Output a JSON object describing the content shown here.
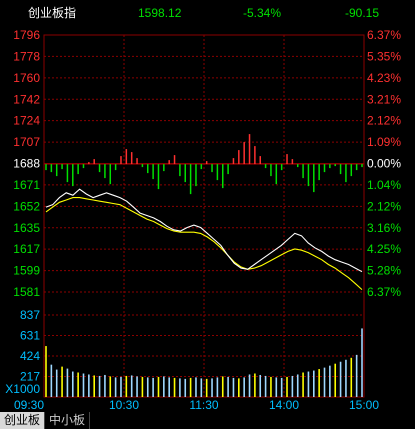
{
  "header": {
    "index_name": "创业板指",
    "price": "1598.12",
    "change_pct": "-5.34%",
    "change": "-90.15"
  },
  "tabs": [
    {
      "label": "创业板",
      "active": true
    },
    {
      "label": "中小板",
      "active": false
    }
  ],
  "colors": {
    "up": "#ff3030",
    "down": "#00e000",
    "grid": "#8b0000",
    "label_blue": "#00bfff",
    "white": "#ffffff",
    "yellow": "#ffff00"
  },
  "chart_data": {
    "type": "line",
    "price_ticks": [
      "1796",
      "1778",
      "1760",
      "1742",
      "1724",
      "1707",
      "1688",
      "1671",
      "1652",
      "1635",
      "1617",
      "1599",
      "1581"
    ],
    "pct_ticks": [
      "6.37%",
      "5.35%",
      "4.23%",
      "3.21%",
      "2.12%",
      "1.09%",
      "0.00%",
      "1.04%",
      "2.12%",
      "3.16%",
      "4.25%",
      "5.28%",
      "6.37%"
    ],
    "volume_ticks": [
      "837",
      "631",
      "424",
      "217"
    ],
    "volume_unit": "X1000",
    "time_ticks": [
      "09:30",
      "10:30",
      "11:30",
      "14:00",
      "15:00"
    ],
    "ylim": [
      1581,
      1796
    ],
    "prev_close": 1688,
    "price_series": [
      1652,
      1654,
      1660,
      1664,
      1662,
      1667,
      1663,
      1660,
      1662,
      1664,
      1662,
      1660,
      1657,
      1652,
      1647,
      1645,
      1643,
      1640,
      1636,
      1633,
      1632,
      1635,
      1637,
      1635,
      1630,
      1625,
      1620,
      1612,
      1605,
      1601,
      1600,
      1604,
      1608,
      1612,
      1616,
      1620,
      1625,
      1630,
      1628,
      1622,
      1618,
      1615,
      1611,
      1608,
      1606,
      1604,
      1601,
      1598
    ],
    "avg_series": [
      1648,
      1652,
      1656,
      1658,
      1660,
      1660,
      1659,
      1658,
      1657,
      1656,
      1655,
      1654,
      1651,
      1648,
      1645,
      1642,
      1640,
      1637,
      1634,
      1632,
      1631,
      1631,
      1631,
      1630,
      1627,
      1623,
      1618,
      1612,
      1606,
      1602,
      1600,
      1601,
      1603,
      1606,
      1609,
      1612,
      1615,
      1617,
      1616,
      1614,
      1611,
      1608,
      1604,
      1601,
      1597,
      1593,
      1588,
      1583
    ],
    "bars": [
      -6,
      -8,
      -12,
      -5,
      -18,
      -22,
      -10,
      -4,
      2,
      5,
      -8,
      -14,
      -20,
      -6,
      8,
      15,
      12,
      6,
      -3,
      -9,
      -15,
      -25,
      -7,
      4,
      9,
      -12,
      -18,
      -30,
      -22,
      -5,
      3,
      -8,
      -16,
      -24,
      -10,
      6,
      14,
      22,
      30,
      18,
      8,
      -4,
      -12,
      -20,
      -6,
      10,
      5,
      -3,
      -14,
      -22,
      -28,
      -16,
      -8,
      -4,
      -2,
      -10,
      -18,
      -12,
      -6,
      -3
    ],
    "volume": [
      520,
      330,
      280,
      310,
      290,
      260,
      250,
      240,
      230,
      220,
      215,
      225,
      210,
      200,
      205,
      215,
      220,
      210,
      205,
      200,
      195,
      205,
      210,
      200,
      195,
      190,
      185,
      195,
      200,
      190,
      185,
      190,
      200,
      210,
      205,
      195,
      190,
      200,
      230,
      240,
      225,
      215,
      205,
      200,
      195,
      205,
      215,
      230,
      250,
      260,
      270,
      285,
      300,
      320,
      340,
      360,
      380,
      400,
      430,
      700
    ]
  }
}
